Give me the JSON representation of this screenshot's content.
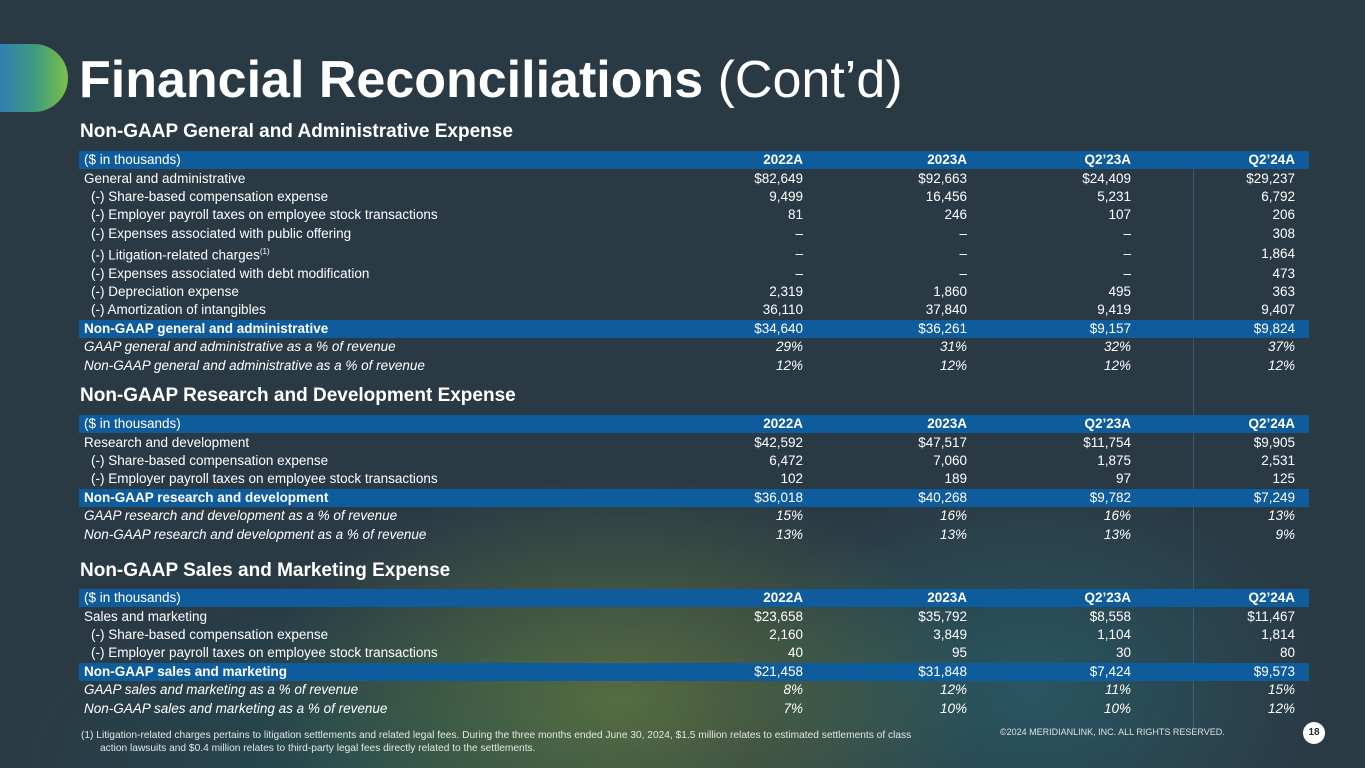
{
  "title": {
    "bold": "Financial Reconciliations",
    "light": "(Cont’d)"
  },
  "sections": [
    {
      "title": "Non-GAAP General and Administrative Expense",
      "header": [
        "($ in thousands)",
        "2022A",
        "2023A",
        "Q2’23A",
        "Q2’24A"
      ],
      "rows": [
        {
          "label": "General and administrative",
          "values": [
            "$82,649",
            "$92,663",
            "$24,409",
            "$29,237"
          ]
        },
        {
          "label": "(-) Share-based compensation expense",
          "values": [
            "9,499",
            "16,456",
            "5,231",
            "6,792"
          ]
        },
        {
          "label": "(-) Employer payroll taxes on employee stock transactions",
          "values": [
            "81",
            "246",
            "107",
            "206"
          ]
        },
        {
          "label": "(-) Expenses associated with public offering",
          "values": [
            "–",
            "–",
            "–",
            "308"
          ]
        },
        {
          "label": "(-) Litigation-related charges",
          "sup": "(1)",
          "values": [
            "–",
            "–",
            "–",
            "1,864"
          ]
        },
        {
          "label": "(-) Expenses associated with debt modification",
          "values": [
            "–",
            "–",
            "–",
            "473"
          ]
        },
        {
          "label": "(-) Depreciation expense",
          "values": [
            "2,319",
            "1,860",
            "495",
            "363"
          ]
        },
        {
          "label": "(-) Amortization of intangibles",
          "values": [
            "36,110",
            "37,840",
            "9,419",
            "9,407"
          ]
        }
      ],
      "total": {
        "label": "Non-GAAP general and administrative",
        "values": [
          "$34,640",
          "$36,261",
          "$9,157",
          "$9,824"
        ]
      },
      "pct": [
        {
          "label": "GAAP general and administrative as a % of revenue",
          "values": [
            "29%",
            "31%",
            "32%",
            "37%"
          ]
        },
        {
          "label": "Non-GAAP general and administrative as a % of revenue",
          "values": [
            "12%",
            "12%",
            "12%",
            "12%"
          ]
        }
      ]
    },
    {
      "title": "Non-GAAP Research and Development Expense",
      "header": [
        "($ in thousands)",
        "2022A",
        "2023A",
        "Q2’23A",
        "Q2’24A"
      ],
      "rows": [
        {
          "label": "Research and development",
          "values": [
            "$42,592",
            "$47,517",
            "$11,754",
            "$9,905"
          ]
        },
        {
          "label": "(-) Share-based compensation expense",
          "values": [
            "6,472",
            "7,060",
            "1,875",
            "2,531"
          ]
        },
        {
          "label": "(-) Employer payroll taxes on employee stock transactions",
          "values": [
            "102",
            "189",
            "97",
            "125"
          ]
        }
      ],
      "total": {
        "label": "Non-GAAP research and development",
        "values": [
          "$36,018",
          "$40,268",
          "$9,782",
          "$7,249"
        ]
      },
      "pct": [
        {
          "label": "GAAP research and development as a % of revenue",
          "values": [
            "15%",
            "16%",
            "16%",
            "13%"
          ]
        },
        {
          "label": "Non-GAAP research and development as a % of revenue",
          "values": [
            "13%",
            "13%",
            "13%",
            "9%"
          ]
        }
      ]
    },
    {
      "title": "Non-GAAP Sales and Marketing Expense",
      "header": [
        "($ in thousands)",
        "2022A",
        "2023A",
        "Q2’23A",
        "Q2’24A"
      ],
      "rows": [
        {
          "label": "Sales and marketing",
          "values": [
            "$23,658",
            "$35,792",
            "$8,558",
            "$11,467"
          ]
        },
        {
          "label": "(-) Share-based compensation expense",
          "values": [
            "2,160",
            "3,849",
            "1,104",
            "1,814"
          ]
        },
        {
          "label": "(-) Employer payroll taxes on employee stock transactions",
          "values": [
            "40",
            "95",
            "30",
            "80"
          ]
        }
      ],
      "total": {
        "label": "Non-GAAP sales and marketing",
        "values": [
          "$21,458",
          "$31,848",
          "$7,424",
          "$9,573"
        ]
      },
      "pct": [
        {
          "label": "GAAP sales and marketing as a % of revenue",
          "values": [
            "8%",
            "12%",
            "11%",
            "15%"
          ]
        },
        {
          "label": "Non-GAAP sales and marketing as a % of revenue",
          "values": [
            "7%",
            "10%",
            "10%",
            "12%"
          ]
        }
      ]
    }
  ],
  "footnote": {
    "line1": "(1) Litigation-related charges pertains to litigation settlements and related legal fees. During the three months ended June 30, 2024, $1.5 million relates to estimated settlements of class",
    "line2": "action lawsuits and $0.4 million relates to third-party legal fees directly related to the settlements."
  },
  "copyright": "©2024 MERIDIANLINK, INC. ALL RIGHTS RESERVED.",
  "page_number": "18"
}
